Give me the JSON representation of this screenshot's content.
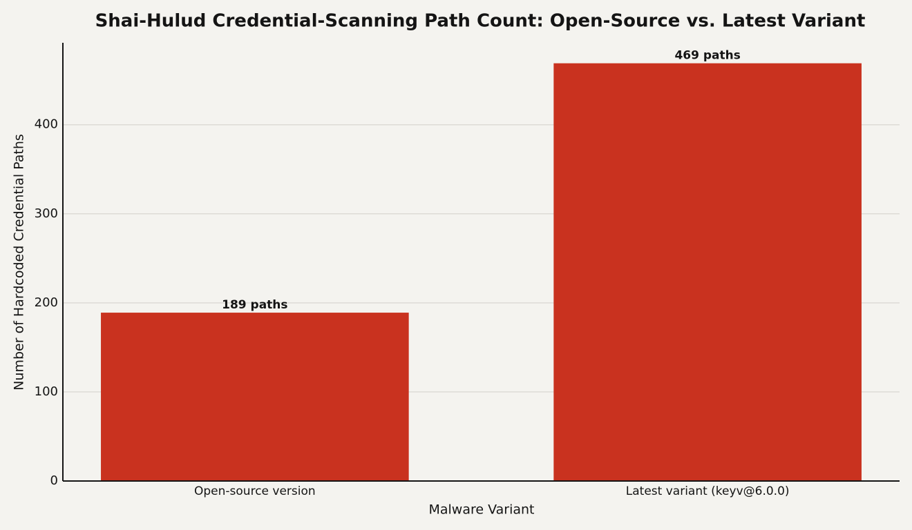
{
  "chart_data": {
    "type": "bar",
    "title": "Shai-Hulud Credential-Scanning Path Count: Open-Source vs. Latest Variant",
    "x_label": "Malware Variant",
    "y_label": "Number of Hardcoded Credential Paths",
    "categories": [
      "Open-source version",
      "Latest variant (keyv@6.0.0)"
    ],
    "values": [
      189,
      469
    ],
    "value_labels": [
      "189 paths",
      "469 paths"
    ],
    "color": "#c9321f",
    "ylim": [
      0,
      492
    ],
    "yticks": [
      0,
      100,
      200,
      300,
      400
    ],
    "grid": true
  }
}
